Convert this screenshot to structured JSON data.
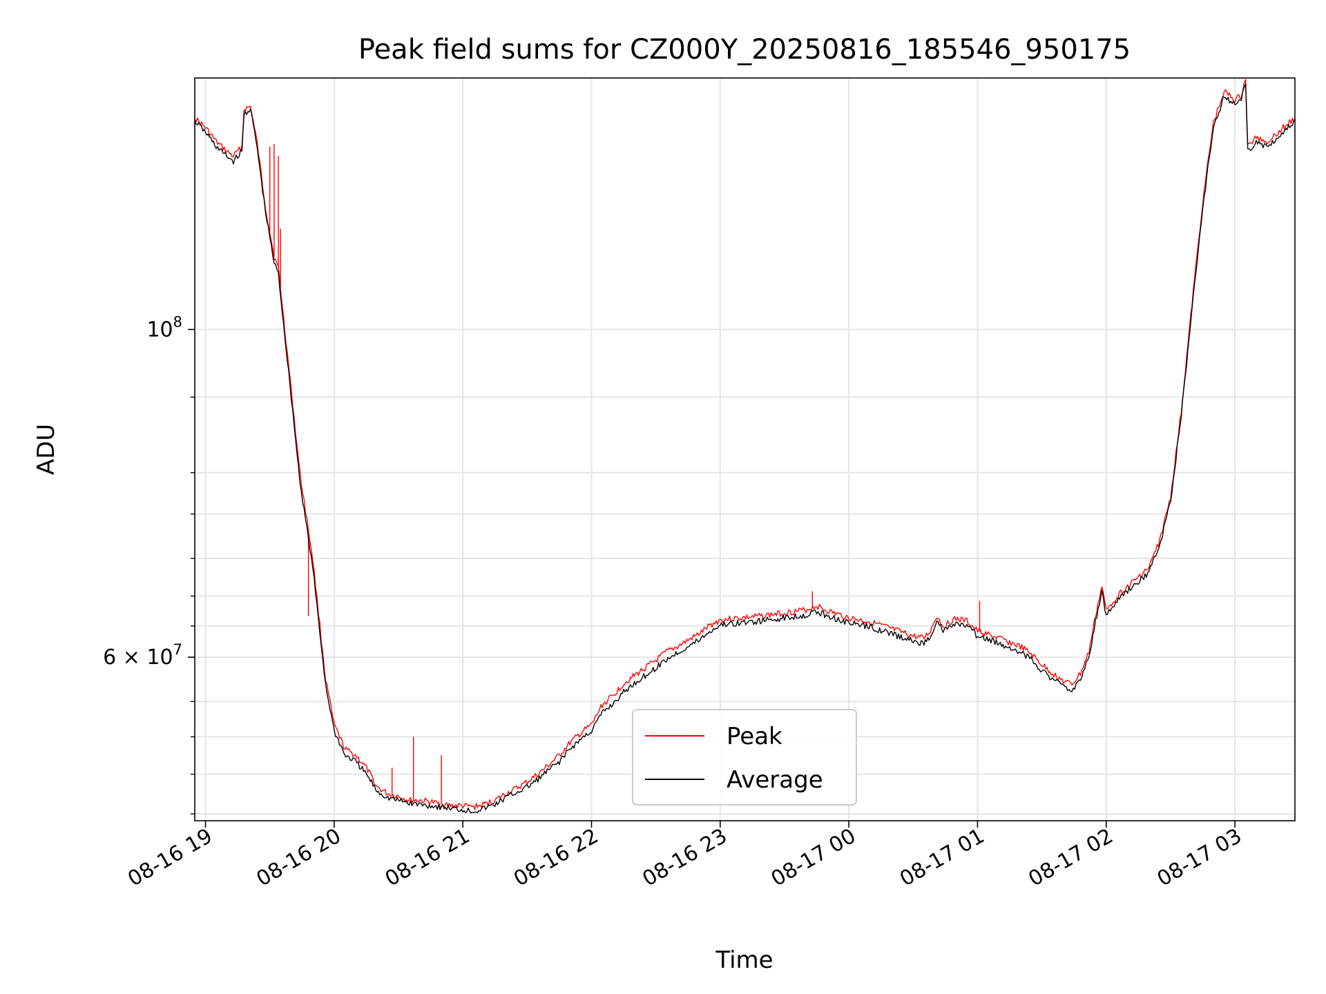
{
  "chart_data": {
    "type": "line",
    "title": "Peak field sums for CZ000Y_20250816_185546_950175",
    "xlabel": "Time",
    "ylabel": "ADU",
    "yscale": "log",
    "ylim": [
      46500000,
      148000000
    ],
    "xlim": [
      "2025-08-16 18:55",
      "2025-08-17 03:28"
    ],
    "x_ticks": [
      "08-16 19",
      "08-16 20",
      "08-16 21",
      "08-16 22",
      "08-16 23",
      "08-17 00",
      "08-17 01",
      "08-17 02",
      "08-17 03"
    ],
    "y_ticks": [
      {
        "value": 60000000,
        "base_label": "6 × 10",
        "exp_label": "7"
      },
      {
        "value": 100000000,
        "base_label": "10",
        "exp_label": "8"
      }
    ],
    "y_minor_ticks": [
      47000000,
      50000000,
      53000000,
      56000000,
      63000000,
      66000000,
      70000000,
      75000000,
      80000000,
      90000000
    ],
    "grid": true,
    "legend_position": "lower center",
    "series": [
      {
        "name": "Peak",
        "color": "#ff0000",
        "points": [
          [
            "2025-08-16 18:55",
            139000000
          ],
          [
            "2025-08-16 19:00",
            137000000
          ],
          [
            "2025-08-16 19:05",
            134000000
          ],
          [
            "2025-08-16 19:10",
            132000000
          ],
          [
            "2025-08-16 19:13",
            131000000
          ],
          [
            "2025-08-16 19:17",
            133000000
          ],
          [
            "2025-08-16 19:18",
            141000000
          ],
          [
            "2025-08-16 19:21",
            141500000
          ],
          [
            "2025-08-16 19:24",
            134000000
          ],
          [
            "2025-08-16 19:28",
            121000000
          ],
          [
            "2025-08-16 19:32",
            112000000
          ],
          [
            "2025-08-16 19:34",
            110000000
          ],
          [
            "2025-08-16 19:37",
            100000000
          ],
          [
            "2025-08-16 19:40",
            91000000
          ],
          [
            "2025-08-16 19:44",
            80000000
          ],
          [
            "2025-08-16 19:50",
            70000000
          ],
          [
            "2025-08-16 19:56",
            58000000
          ],
          [
            "2025-08-16 20:00",
            54000000
          ],
          [
            "2025-08-16 20:05",
            52000000
          ],
          [
            "2025-08-16 20:10",
            51500000
          ],
          [
            "2025-08-16 20:15",
            50500000
          ],
          [
            "2025-08-16 20:20",
            49000000
          ],
          [
            "2025-08-16 20:25",
            48500000
          ],
          [
            "2025-08-16 20:30",
            48300000
          ],
          [
            "2025-08-16 20:35",
            48000000
          ],
          [
            "2025-08-16 20:40",
            48000000
          ],
          [
            "2025-08-16 20:45",
            47900000
          ],
          [
            "2025-08-16 20:50",
            47700000
          ],
          [
            "2025-08-16 20:55",
            47600000
          ],
          [
            "2025-08-16 21:00",
            47600000
          ],
          [
            "2025-08-16 21:05",
            47500000
          ],
          [
            "2025-08-16 21:10",
            47700000
          ],
          [
            "2025-08-16 21:15",
            48000000
          ],
          [
            "2025-08-16 21:20",
            48500000
          ],
          [
            "2025-08-16 21:25",
            48900000
          ],
          [
            "2025-08-16 21:30",
            49400000
          ],
          [
            "2025-08-16 21:35",
            50000000
          ],
          [
            "2025-08-16 21:40",
            50700000
          ],
          [
            "2025-08-16 21:45",
            51500000
          ],
          [
            "2025-08-16 21:50",
            52500000
          ],
          [
            "2025-08-16 21:55",
            53300000
          ],
          [
            "2025-08-16 22:00",
            54000000
          ],
          [
            "2025-08-16 22:05",
            55700000
          ],
          [
            "2025-08-16 22:10",
            56500000
          ],
          [
            "2025-08-16 22:15",
            57600000
          ],
          [
            "2025-08-16 22:20",
            58300000
          ],
          [
            "2025-08-16 22:25",
            59000000
          ],
          [
            "2025-08-16 22:30",
            59700000
          ],
          [
            "2025-08-16 22:35",
            60500000
          ],
          [
            "2025-08-16 22:40",
            61000000
          ],
          [
            "2025-08-16 22:45",
            61600000
          ],
          [
            "2025-08-16 22:50",
            62200000
          ],
          [
            "2025-08-16 22:55",
            63000000
          ],
          [
            "2025-08-16 23:00",
            63600000
          ],
          [
            "2025-08-16 23:10",
            63800000
          ],
          [
            "2025-08-16 23:20",
            64000000
          ],
          [
            "2025-08-16 23:30",
            64300000
          ],
          [
            "2025-08-16 23:40",
            64600000
          ],
          [
            "2025-08-16 23:45",
            65000000
          ],
          [
            "2025-08-16 23:50",
            64500000
          ],
          [
            "2025-08-17 00:00",
            63800000
          ],
          [
            "2025-08-17 00:10",
            63400000
          ],
          [
            "2025-08-17 00:20",
            62700000
          ],
          [
            "2025-08-17 00:30",
            62000000
          ],
          [
            "2025-08-17 00:35",
            61800000
          ],
          [
            "2025-08-17 00:38",
            62500000
          ],
          [
            "2025-08-17 00:41",
            64000000
          ],
          [
            "2025-08-17 00:44",
            63000000
          ],
          [
            "2025-08-17 00:50",
            63700000
          ],
          [
            "2025-08-17 00:55",
            63500000
          ],
          [
            "2025-08-17 01:00",
            62500000
          ],
          [
            "2025-08-17 01:10",
            61800000
          ],
          [
            "2025-08-17 01:20",
            61000000
          ],
          [
            "2025-08-17 01:25",
            60300000
          ],
          [
            "2025-08-17 01:30",
            59300000
          ],
          [
            "2025-08-17 01:35",
            58500000
          ],
          [
            "2025-08-17 01:40",
            57800000
          ],
          [
            "2025-08-17 01:44",
            57500000
          ],
          [
            "2025-08-17 01:48",
            58500000
          ],
          [
            "2025-08-17 01:52",
            60500000
          ],
          [
            "2025-08-17 01:55",
            64000000
          ],
          [
            "2025-08-17 01:58",
            67000000
          ],
          [
            "2025-08-17 02:00",
            64500000
          ],
          [
            "2025-08-17 02:05",
            66000000
          ],
          [
            "2025-08-17 02:10",
            67000000
          ],
          [
            "2025-08-17 02:15",
            68000000
          ],
          [
            "2025-08-17 02:20",
            69000000
          ],
          [
            "2025-08-17 02:25",
            72000000
          ],
          [
            "2025-08-17 02:30",
            77000000
          ],
          [
            "2025-08-17 02:35",
            88000000
          ],
          [
            "2025-08-17 02:40",
            104000000
          ],
          [
            "2025-08-17 02:45",
            122000000
          ],
          [
            "2025-08-17 02:50",
            138000000
          ],
          [
            "2025-08-17 02:55",
            145000000
          ],
          [
            "2025-08-17 03:00",
            143000000
          ],
          [
            "2025-08-17 03:03",
            144000000
          ],
          [
            "2025-08-17 03:05",
            148000000
          ],
          [
            "2025-08-17 03:06",
            133000000
          ],
          [
            "2025-08-17 03:10",
            135000000
          ],
          [
            "2025-08-17 03:15",
            134000000
          ],
          [
            "2025-08-17 03:20",
            136000000
          ],
          [
            "2025-08-17 03:25",
            138000000
          ],
          [
            "2025-08-17 03:28",
            139000000
          ]
        ],
        "spikes": [
          [
            "2025-08-16 19:30",
            133000000
          ],
          [
            "2025-08-16 19:32",
            133500000
          ],
          [
            "2025-08-16 19:34",
            131000000
          ],
          [
            "2025-08-16 19:35",
            117000000
          ],
          [
            "2025-08-16 19:48",
            64000000
          ],
          [
            "2025-08-16 20:27",
            50500000
          ],
          [
            "2025-08-16 20:37",
            53000000
          ],
          [
            "2025-08-16 20:50",
            51500000
          ],
          [
            "2025-08-16 23:43",
            66500000
          ],
          [
            "2025-08-17 01:01",
            65500000
          ]
        ]
      },
      {
        "name": "Average",
        "color": "#000000",
        "points": [
          [
            "2025-08-16 18:55",
            138500000
          ],
          [
            "2025-08-16 19:00",
            136000000
          ],
          [
            "2025-08-16 19:05",
            133000000
          ],
          [
            "2025-08-16 19:10",
            131000000
          ],
          [
            "2025-08-16 19:13",
            130000000
          ],
          [
            "2025-08-16 19:17",
            132000000
          ],
          [
            "2025-08-16 19:18",
            140000000
          ],
          [
            "2025-08-16 19:21",
            141000000
          ],
          [
            "2025-08-16 19:24",
            133000000
          ],
          [
            "2025-08-16 19:28",
            120000000
          ],
          [
            "2025-08-16 19:32",
            111000000
          ],
          [
            "2025-08-16 19:34",
            109000000
          ],
          [
            "2025-08-16 19:37",
            99000000
          ],
          [
            "2025-08-16 19:40",
            90000000
          ],
          [
            "2025-08-16 19:44",
            79000000
          ],
          [
            "2025-08-16 19:50",
            69000000
          ],
          [
            "2025-08-16 19:56",
            57500000
          ],
          [
            "2025-08-16 20:00",
            53500000
          ],
          [
            "2025-08-16 20:05",
            51500000
          ],
          [
            "2025-08-16 20:10",
            51000000
          ],
          [
            "2025-08-16 20:15",
            50000000
          ],
          [
            "2025-08-16 20:20",
            48700000
          ],
          [
            "2025-08-16 20:25",
            48200000
          ],
          [
            "2025-08-16 20:30",
            48000000
          ],
          [
            "2025-08-16 20:35",
            47800000
          ],
          [
            "2025-08-16 20:40",
            47700000
          ],
          [
            "2025-08-16 20:45",
            47600000
          ],
          [
            "2025-08-16 20:50",
            47500000
          ],
          [
            "2025-08-16 20:55",
            47400000
          ],
          [
            "2025-08-16 21:00",
            47300000
          ],
          [
            "2025-08-16 21:05",
            47200000
          ],
          [
            "2025-08-16 21:10",
            47400000
          ],
          [
            "2025-08-16 21:15",
            47700000
          ],
          [
            "2025-08-16 21:20",
            48200000
          ],
          [
            "2025-08-16 21:25",
            48600000
          ],
          [
            "2025-08-16 21:30",
            49000000
          ],
          [
            "2025-08-16 21:35",
            49600000
          ],
          [
            "2025-08-16 21:40",
            50300000
          ],
          [
            "2025-08-16 21:45",
            51000000
          ],
          [
            "2025-08-16 21:50",
            52000000
          ],
          [
            "2025-08-16 21:55",
            52800000
          ],
          [
            "2025-08-16 22:00",
            53500000
          ],
          [
            "2025-08-16 22:05",
            55000000
          ],
          [
            "2025-08-16 22:10",
            55800000
          ],
          [
            "2025-08-16 22:15",
            56800000
          ],
          [
            "2025-08-16 22:20",
            57600000
          ],
          [
            "2025-08-16 22:25",
            58300000
          ],
          [
            "2025-08-16 22:30",
            59000000
          ],
          [
            "2025-08-16 22:35",
            59800000
          ],
          [
            "2025-08-16 22:40",
            60400000
          ],
          [
            "2025-08-16 22:45",
            61000000
          ],
          [
            "2025-08-16 22:50",
            61600000
          ],
          [
            "2025-08-16 22:55",
            62400000
          ],
          [
            "2025-08-16 23:00",
            63100000
          ],
          [
            "2025-08-16 23:10",
            63300000
          ],
          [
            "2025-08-16 23:20",
            63500000
          ],
          [
            "2025-08-16 23:30",
            63800000
          ],
          [
            "2025-08-16 23:40",
            64100000
          ],
          [
            "2025-08-16 23:45",
            64400000
          ],
          [
            "2025-08-16 23:50",
            64000000
          ],
          [
            "2025-08-17 00:00",
            63300000
          ],
          [
            "2025-08-17 00:10",
            62900000
          ],
          [
            "2025-08-17 00:20",
            62200000
          ],
          [
            "2025-08-17 00:30",
            61500000
          ],
          [
            "2025-08-17 00:35",
            61300000
          ],
          [
            "2025-08-17 00:38",
            62000000
          ],
          [
            "2025-08-17 00:41",
            63500000
          ],
          [
            "2025-08-17 00:44",
            62500000
          ],
          [
            "2025-08-17 00:50",
            63200000
          ],
          [
            "2025-08-17 00:55",
            63000000
          ],
          [
            "2025-08-17 01:00",
            62000000
          ],
          [
            "2025-08-17 01:10",
            61300000
          ],
          [
            "2025-08-17 01:20",
            60500000
          ],
          [
            "2025-08-17 01:25",
            59800000
          ],
          [
            "2025-08-17 01:30",
            58800000
          ],
          [
            "2025-08-17 01:35",
            58000000
          ],
          [
            "2025-08-17 01:40",
            57300000
          ],
          [
            "2025-08-17 01:44",
            57000000
          ],
          [
            "2025-08-17 01:48",
            58000000
          ],
          [
            "2025-08-17 01:52",
            60000000
          ],
          [
            "2025-08-17 01:55",
            63500000
          ],
          [
            "2025-08-17 01:58",
            66500000
          ],
          [
            "2025-08-17 02:00",
            64000000
          ],
          [
            "2025-08-17 02:05",
            65500000
          ],
          [
            "2025-08-17 02:10",
            66500000
          ],
          [
            "2025-08-17 02:15",
            67500000
          ],
          [
            "2025-08-17 02:20",
            68500000
          ],
          [
            "2025-08-17 02:25",
            71500000
          ],
          [
            "2025-08-17 02:30",
            76500000
          ],
          [
            "2025-08-17 02:35",
            87500000
          ],
          [
            "2025-08-17 02:40",
            103000000
          ],
          [
            "2025-08-17 02:45",
            121000000
          ],
          [
            "2025-08-17 02:50",
            137000000
          ],
          [
            "2025-08-17 02:55",
            144000000
          ],
          [
            "2025-08-17 03:00",
            142000000
          ],
          [
            "2025-08-17 03:03",
            143000000
          ],
          [
            "2025-08-17 03:05",
            147000000
          ],
          [
            "2025-08-17 03:06",
            132000000
          ],
          [
            "2025-08-17 03:10",
            134000000
          ],
          [
            "2025-08-17 03:15",
            133000000
          ],
          [
            "2025-08-17 03:20",
            135000000
          ],
          [
            "2025-08-17 03:25",
            137000000
          ],
          [
            "2025-08-17 03:28",
            138500000
          ]
        ]
      }
    ]
  }
}
